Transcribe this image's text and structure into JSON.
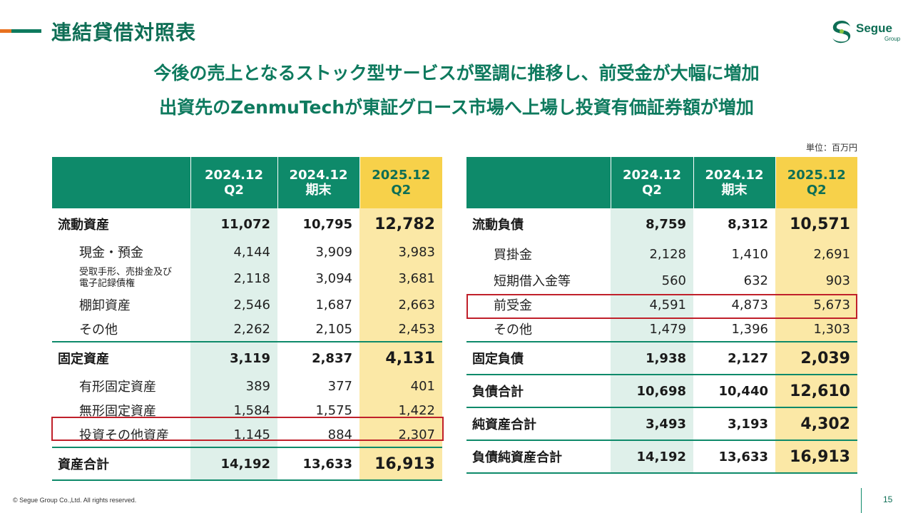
{
  "title": "連結貸借対照表",
  "logo": {
    "name": "Segue",
    "sub": "Group"
  },
  "headline": [
    "今後の売上となるストック型サービスが堅調に推移し、前受金が大幅に増加",
    "出資先のZenmuTechが東証グロース市場へ上場し投資有価証券額が増加"
  ],
  "unit": "単位：百万円",
  "columns": [
    "2024.12\nQ2",
    "2024.12\n期末",
    "2025.12\nQ2"
  ],
  "assets": {
    "rows": [
      {
        "label": "流動資産",
        "values": [
          "11,072",
          "10,795",
          "12,782"
        ]
      },
      {
        "label": "現金・預金",
        "values": [
          "4,144",
          "3,909",
          "3,983"
        ]
      },
      {
        "label": "受取手形、売掛金及び\n電子記録債権",
        "values": [
          "2,118",
          "3,094",
          "3,681"
        ]
      },
      {
        "label": "棚卸資産",
        "values": [
          "2,546",
          "1,687",
          "2,663"
        ]
      },
      {
        "label": "その他",
        "values": [
          "2,262",
          "2,105",
          "2,453"
        ]
      },
      {
        "label": "固定資産",
        "values": [
          "3,119",
          "2,837",
          "4,131"
        ]
      },
      {
        "label": "有形固定資産",
        "values": [
          "389",
          "377",
          "401"
        ]
      },
      {
        "label": "無形固定資産",
        "values": [
          "1,584",
          "1,575",
          "1,422"
        ]
      },
      {
        "label": "投資その他資産",
        "values": [
          "1,145",
          "884",
          "2,307"
        ]
      },
      {
        "label": "資産合計",
        "values": [
          "14,192",
          "13,633",
          "16,913"
        ]
      }
    ]
  },
  "liabilities": {
    "rows": [
      {
        "label": "流動負債",
        "values": [
          "8,759",
          "8,312",
          "10,571"
        ]
      },
      {
        "label": "買掛金",
        "values": [
          "2,128",
          "1,410",
          "2,691"
        ]
      },
      {
        "label": "短期借入金等",
        "values": [
          "560",
          "632",
          "903"
        ]
      },
      {
        "label": "前受金",
        "values": [
          "4,591",
          "4,873",
          "5,673"
        ]
      },
      {
        "label": "その他",
        "values": [
          "1,479",
          "1,396",
          "1,303"
        ]
      },
      {
        "label": "固定負債",
        "values": [
          "1,938",
          "2,127",
          "2,039"
        ]
      },
      {
        "label": "負債合計",
        "values": [
          "10,698",
          "10,440",
          "12,610"
        ]
      },
      {
        "label": "純資産合計",
        "values": [
          "3,493",
          "3,193",
          "4,302"
        ]
      },
      {
        "label": "負債純資産合計",
        "values": [
          "14,192",
          "13,633",
          "16,913"
        ]
      }
    ]
  },
  "highlight_color": "#c0202a",
  "brand_color": "#0e8a6a",
  "accent_color": "#f7d14a",
  "footer": "© Segue Group Co.,Ltd. All rights reserved.",
  "page_number": "15"
}
